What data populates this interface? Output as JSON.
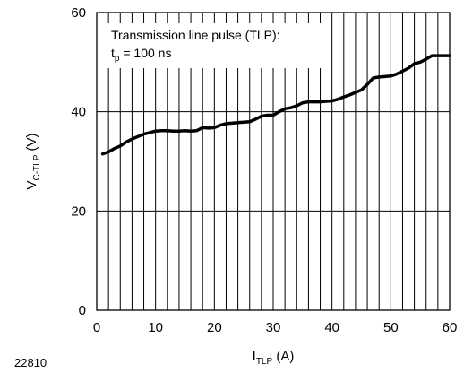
{
  "chart_data": {
    "type": "line",
    "xlabel": {
      "main": "I",
      "sub": "TLP",
      "unit": " (A)"
    },
    "ylabel": {
      "main": "V",
      "sub": "C-TLP",
      "unit": " (V)"
    },
    "xlim": [
      0,
      60
    ],
    "ylim": [
      0,
      60
    ],
    "xticks": [
      "0",
      "10",
      "20",
      "30",
      "40",
      "50",
      "60"
    ],
    "yticks": [
      "0",
      "20",
      "40",
      "60"
    ],
    "minor_vertical_grid_step": 2,
    "grid": true,
    "annotation": {
      "line1": "Transmission line pulse (TLP):",
      "line2_main": "t",
      "line2_sub": "p",
      "line2_rest": " = 100 ns"
    },
    "figure_number": "22810",
    "series": [
      {
        "color": "#000000",
        "x": [
          1,
          2,
          3,
          4,
          5,
          6,
          7,
          8,
          9,
          10,
          11,
          12,
          13,
          14,
          15,
          16,
          17,
          18,
          19,
          20,
          21,
          22,
          23,
          24,
          25,
          26,
          27,
          28,
          29,
          30,
          31,
          32,
          33,
          34,
          35,
          36,
          37,
          38,
          39,
          40,
          41,
          42,
          43,
          44,
          45,
          46,
          47,
          48,
          49,
          50,
          51,
          52,
          53,
          54,
          55,
          56,
          57,
          58,
          59,
          60
        ],
        "y": [
          31.5,
          31.9,
          32.6,
          33.1,
          33.9,
          34.5,
          35.0,
          35.5,
          35.8,
          36.1,
          36.2,
          36.2,
          36.1,
          36.1,
          36.2,
          36.1,
          36.2,
          36.8,
          36.7,
          36.8,
          37.3,
          37.6,
          37.7,
          37.8,
          37.9,
          38.0,
          38.5,
          39.1,
          39.3,
          39.3,
          40.0,
          40.6,
          40.8,
          41.2,
          41.8,
          42.0,
          42.0,
          42.0,
          42.1,
          42.2,
          42.5,
          43.0,
          43.4,
          43.9,
          44.4,
          45.5,
          46.8,
          47.0,
          47.1,
          47.2,
          47.6,
          48.2,
          48.8,
          49.7,
          50.0,
          50.6,
          51.3,
          51.3,
          51.3,
          51.3
        ]
      }
    ]
  }
}
